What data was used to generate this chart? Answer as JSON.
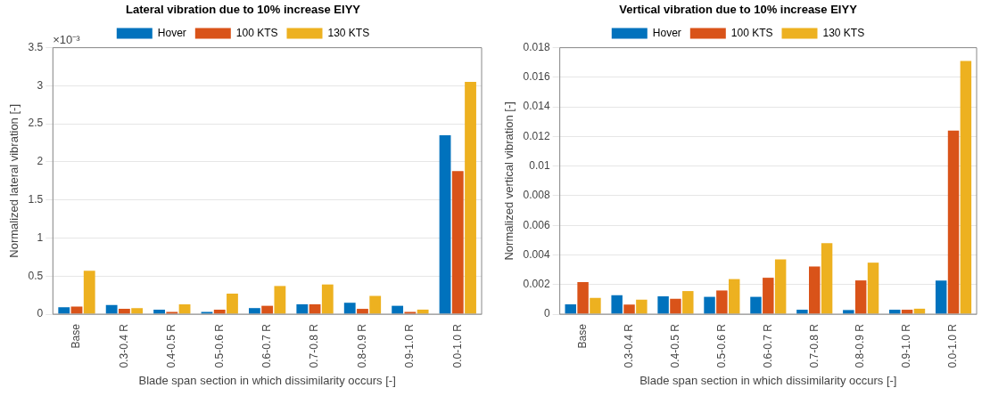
{
  "chart_data": [
    {
      "type": "bar",
      "title": "Lateral vibration due to 10% increase EIYY",
      "xlabel": "Blade span section in which dissimilarity occurs [-]",
      "ylabel": "Normalized lateral vibration [-]",
      "annotations": [
        "×10⁻³"
      ],
      "categories": [
        "Base",
        "0.3-0.4 R",
        "0.4-0.5 R",
        "0.5-0.6 R",
        "0.6-0.7 R",
        "0.7-0.8 R",
        "0.8-0.9 R",
        "0.9-1.0 R",
        "0.0-1.0 R"
      ],
      "series": [
        {
          "name": "Hover",
          "color": "#0072bd",
          "values": [
            0.09,
            0.12,
            0.06,
            0.03,
            0.08,
            0.13,
            0.15,
            0.11,
            2.35
          ]
        },
        {
          "name": "100 KTS",
          "color": "#d95319",
          "values": [
            0.1,
            0.07,
            0.03,
            0.06,
            0.11,
            0.13,
            0.07,
            0.03,
            1.88
          ]
        },
        {
          "name": "130 KTS",
          "color": "#edb120",
          "values": [
            0.57,
            0.08,
            0.13,
            0.27,
            0.37,
            0.39,
            0.24,
            0.06,
            3.05
          ]
        }
      ],
      "ylim": [
        0,
        3.5
      ],
      "yticks": [
        0,
        0.5,
        1,
        1.5,
        2,
        2.5,
        3,
        3.5
      ],
      "grid": "y",
      "legend": "top"
    },
    {
      "type": "bar",
      "title": "Vertical vibration due to 10% increase EIYY",
      "xlabel": "Blade span section in which dissimilarity occurs [-]",
      "ylabel": "Normalized vertical vibration [-]",
      "categories": [
        "Base",
        "0.3-0.4 R",
        "0.4-0.5 R",
        "0.5-0.6 R",
        "0.6-0.7 R",
        "0.7-0.8 R",
        "0.8-0.9 R",
        "0.9-1.0 R",
        "0.0-1.0 R"
      ],
      "series": [
        {
          "name": "Hover",
          "color": "#0072bd",
          "values": [
            0.00067,
            0.00128,
            0.0012,
            0.00117,
            0.00117,
            0.0003,
            0.00028,
            0.0003,
            0.00227
          ]
        },
        {
          "name": "100 KTS",
          "color": "#d95319",
          "values": [
            0.00217,
            0.00065,
            0.00104,
            0.0016,
            0.00246,
            0.00322,
            0.00228,
            0.0003,
            0.0124
          ]
        },
        {
          "name": "130 KTS",
          "color": "#edb120",
          "values": [
            0.0011,
            0.00098,
            0.00156,
            0.00237,
            0.0037,
            0.0048,
            0.00348,
            0.00037,
            0.0171
          ]
        }
      ],
      "ylim": [
        0,
        0.018
      ],
      "yticks": [
        0,
        0.002,
        0.004,
        0.006,
        0.008,
        0.01,
        0.012,
        0.014,
        0.016,
        0.018
      ],
      "grid": "y",
      "legend": "top"
    }
  ]
}
